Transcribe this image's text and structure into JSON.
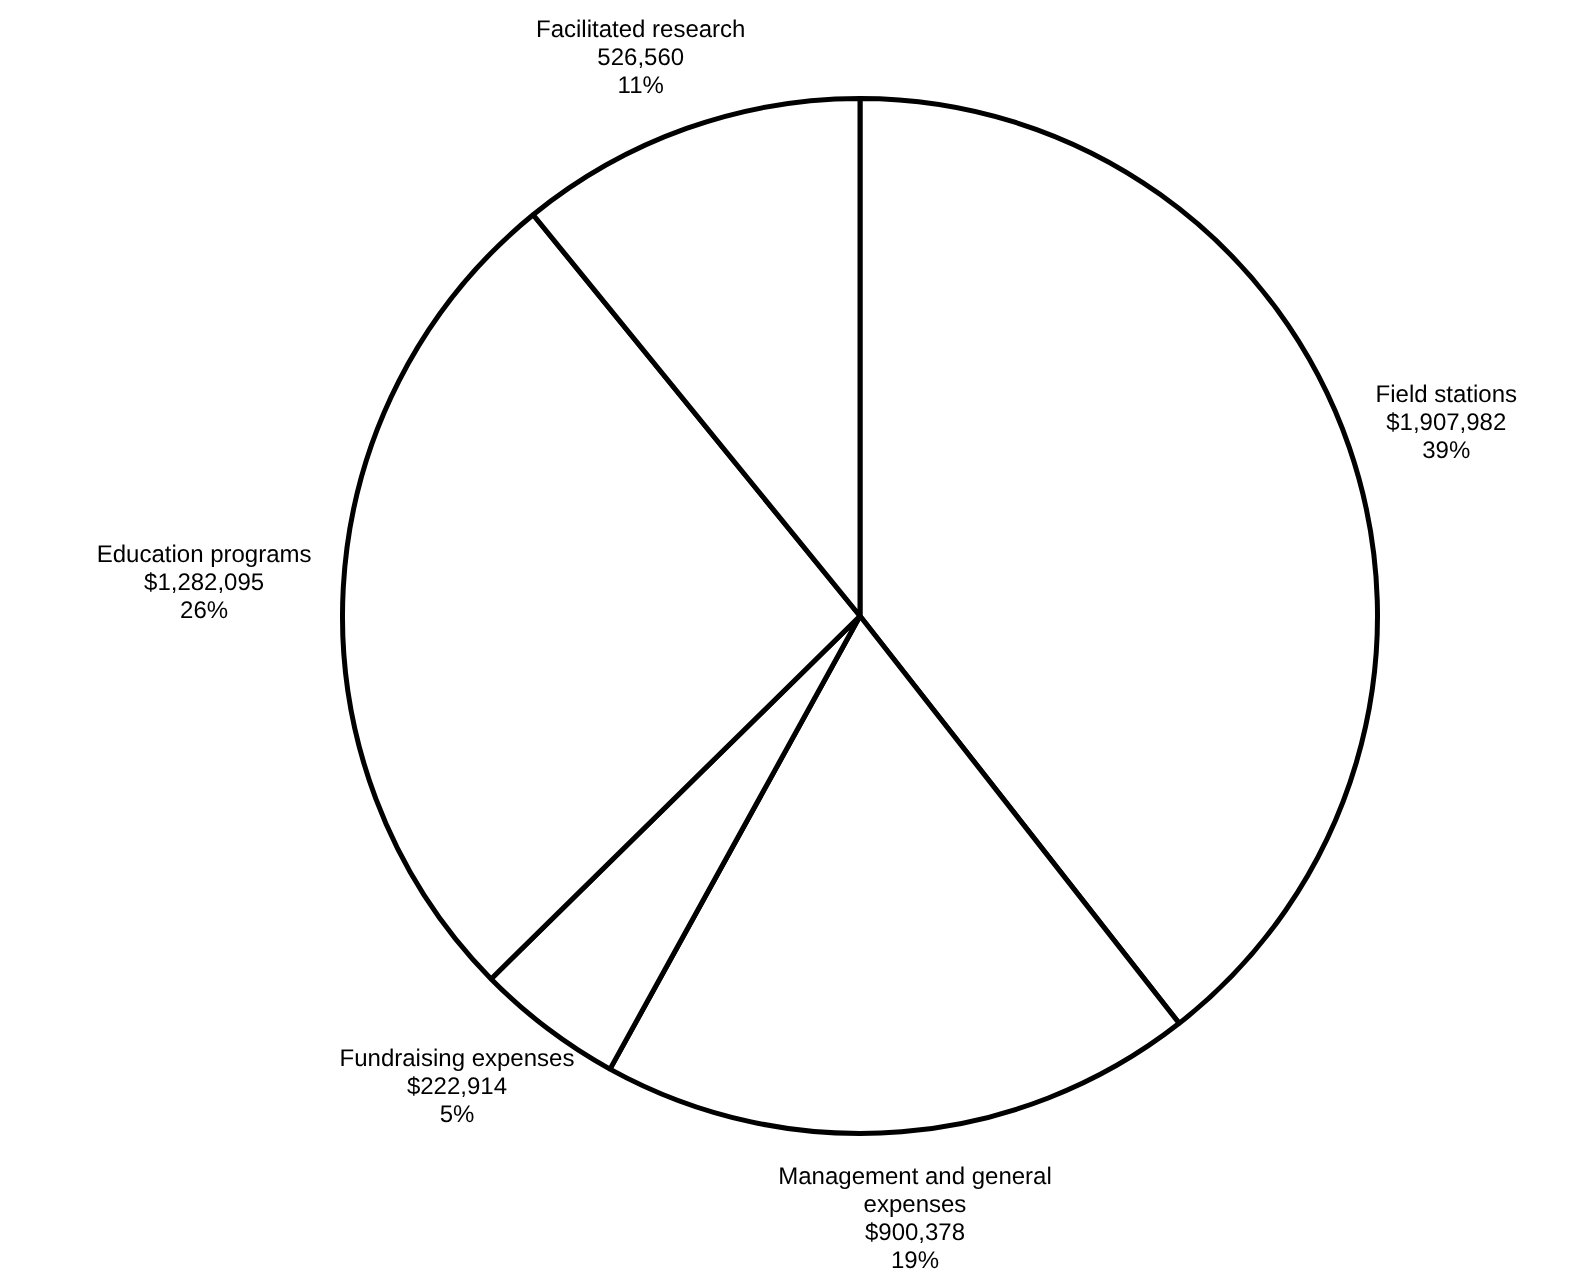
{
  "chart_data": {
    "type": "pie",
    "categories": [
      "Field stations",
      "Management and general expenses",
      "Fundraising expenses",
      "Education programs",
      "Facilitated research"
    ],
    "values": [
      1907982,
      900378,
      222914,
      1282095,
      526560
    ],
    "value_labels": [
      "$1,907,982\n39%",
      "$900,378\n19%",
      "$222,914\n5%",
      "$1,282,095\n26%",
      "526,560\n11%"
    ],
    "colors": [
      "#ffffff",
      "#ffffff",
      "#ffffff",
      "#ffffff",
      "#ffffff"
    ],
    "legend": false
  }
}
